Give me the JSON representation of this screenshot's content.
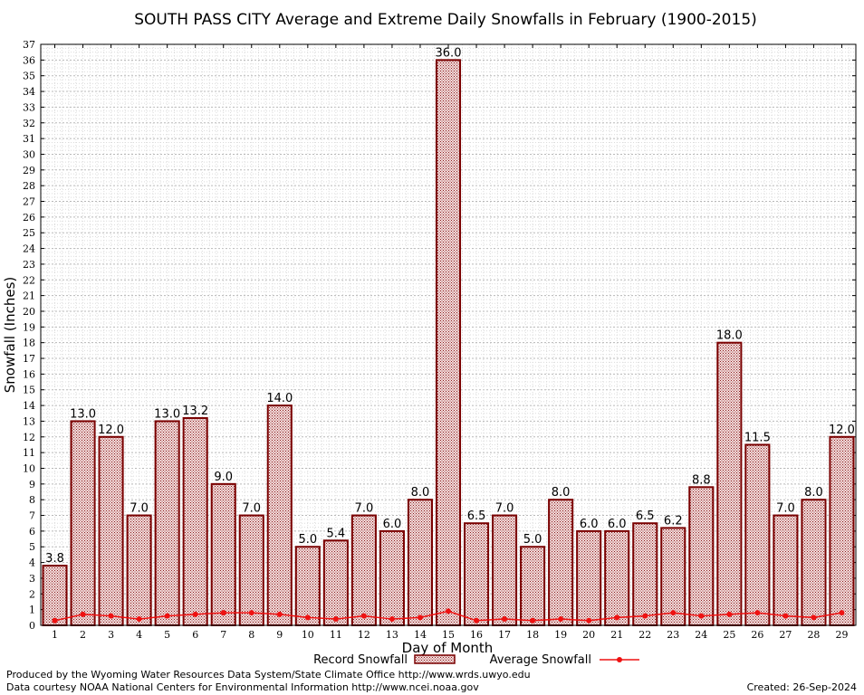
{
  "chart_data": {
    "type": "bar",
    "title": "SOUTH PASS CITY Average and Extreme Daily Snowfalls in February (1900-2015)",
    "xlabel": "Day of Month",
    "ylabel": "Snowfall (Inches)",
    "ylim": [
      0,
      37
    ],
    "yticks": [
      0,
      1,
      2,
      3,
      4,
      5,
      6,
      7,
      8,
      9,
      10,
      11,
      12,
      13,
      14,
      15,
      16,
      17,
      18,
      19,
      20,
      21,
      22,
      23,
      24,
      25,
      26,
      27,
      28,
      29,
      30,
      31,
      32,
      33,
      34,
      35,
      36,
      37
    ],
    "grid": true,
    "categories": [
      "1",
      "2",
      "3",
      "4",
      "5",
      "6",
      "7",
      "8",
      "9",
      "10",
      "11",
      "12",
      "13",
      "14",
      "15",
      "16",
      "17",
      "18",
      "19",
      "20",
      "21",
      "22",
      "23",
      "24",
      "25",
      "26",
      "27",
      "28",
      "29"
    ],
    "series": [
      {
        "name": "Record Snowfall",
        "kind": "bar",
        "values": [
          3.8,
          13.0,
          12.0,
          7.0,
          13.0,
          13.2,
          9.0,
          7.0,
          14.0,
          5.0,
          5.4,
          7.0,
          6.0,
          8.0,
          36.0,
          6.5,
          7.0,
          5.0,
          8.0,
          6.0,
          6.0,
          6.5,
          6.2,
          8.8,
          18.0,
          11.5,
          7.0,
          8.0,
          12.0
        ],
        "labels": [
          "3.8",
          "13.0",
          "12.0",
          "7.0",
          "13.0",
          "13.2",
          "9.0",
          "7.0",
          "14.0",
          "5.0",
          "5.4",
          "7.0",
          "6.0",
          "8.0",
          "36.0",
          "6.5",
          "7.0",
          "5.0",
          "8.0",
          "6.0",
          "6.0",
          "6.5",
          "6.2",
          "8.8",
          "18.0",
          "11.5",
          "7.0",
          "8.0",
          "12.0"
        ]
      },
      {
        "name": "Average Snowfall",
        "kind": "line",
        "values": [
          0.3,
          0.7,
          0.6,
          0.4,
          0.6,
          0.7,
          0.8,
          0.8,
          0.7,
          0.5,
          0.4,
          0.6,
          0.4,
          0.5,
          0.9,
          0.3,
          0.4,
          0.3,
          0.4,
          0.3,
          0.5,
          0.6,
          0.8,
          0.6,
          0.7,
          0.8,
          0.6,
          0.5,
          0.8
        ]
      }
    ],
    "legend_position": "bottom-center",
    "colors": {
      "bar_edge": "#7a0000",
      "bar_fill": "#d9a0a0",
      "line": "#ee1111",
      "grid": "#c0c0c0"
    }
  },
  "footer": {
    "produced_by": "Produced by the Wyoming Water Resources Data System/State Climate Office http://www.wrds.uwyo.edu",
    "courtesy": "Data courtesy NOAA National Centers for Environmental Information http://www.ncei.noaa.gov",
    "created": "Created:  26-Sep-2024"
  }
}
